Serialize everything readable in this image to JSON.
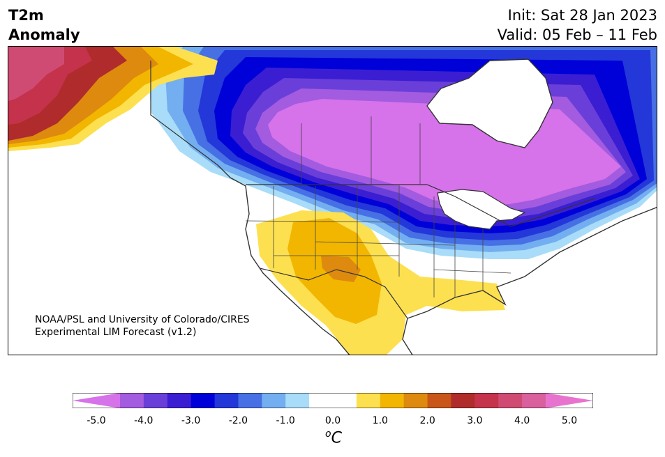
{
  "title": {
    "line1": "T2m",
    "line2": "Anomaly",
    "init": "Init: Sat 28 Jan 2023",
    "valid": "Valid: 05 Feb – 11 Feb"
  },
  "credit": {
    "line1": "NOAA/PSL and University of Colorado/CIRES",
    "line2": "Experimental LIM Forecast (v1.2)"
  },
  "colorbar": {
    "unit_sup": "o",
    "unit": "C",
    "ticks": [
      "-5.0",
      "-4.0",
      "-3.0",
      "-2.0",
      "-1.0",
      "0.0",
      "1.0",
      "2.0",
      "3.0",
      "4.0",
      "5.0"
    ],
    "colors": [
      "#d672ea",
      "#a35be0",
      "#6a3fd9",
      "#3b1ed2",
      "#0000d8",
      "#2437d9",
      "#4670e4",
      "#73aef0",
      "#a9dcf8",
      "#ffffff",
      "#ffffff",
      "#fde04f",
      "#f2b600",
      "#dd8a0f",
      "#c95518",
      "#b02b2b",
      "#c4324b",
      "#cf4b73",
      "#d9609d",
      "#e873cf"
    ]
  },
  "map": {
    "colors": {
      "deep_cold": "#d672ea",
      "cold_purple": "#a35be0",
      "cold_violet": "#6a3fd9",
      "cold_dark_blue": "#3b1ed2",
      "cold_blue": "#0000d8",
      "cold_mid_blue": "#2437d9",
      "cold_light_blue": "#4670e4",
      "cool_sky": "#73aef0",
      "cool_pale": "#a9dcf8",
      "warm_yellow": "#fde04f",
      "warm_gold": "#f2b600",
      "warm_orange": "#dd8a0f",
      "hot_orange": "#c95518",
      "hot_red": "#b02b2b",
      "hot_crimson": "#c4324b",
      "hot_pink": "#cf4b73"
    }
  }
}
